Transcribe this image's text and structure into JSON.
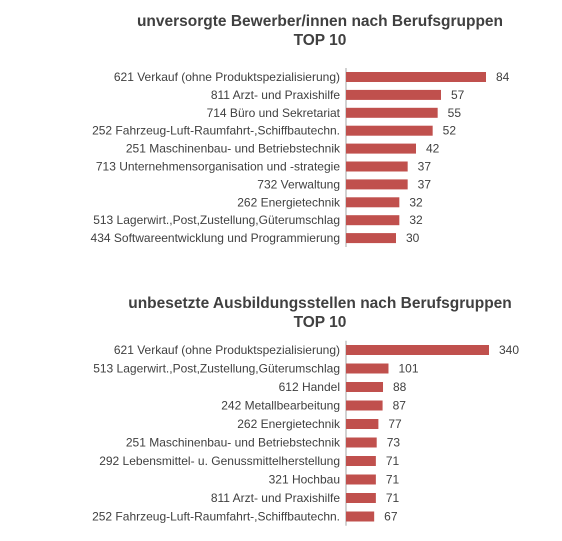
{
  "colors": {
    "bar": "#c0504d",
    "axis": "#a6a6a6",
    "text": "#404040"
  },
  "chart_data": [
    {
      "type": "bar",
      "orientation": "horizontal",
      "title": "unversorgte Bewerber/innen nach Berufsgruppen",
      "subtitle": "TOP 10",
      "categories": [
        "621 Verkauf (ohne Produktspezialisierung)",
        "811 Arzt- und Praxishilfe",
        "714 Büro und Sekretariat",
        "252 Fahrzeug-Luft-Raumfahrt-,Schiffbautechn.",
        "251 Maschinenbau- und Betriebstechnik",
        "713 Unternehmensorganisation und -strategie",
        "732 Verwaltung",
        "262 Energietechnik",
        "513 Lagerwirt.,Post,Zustellung,Güterumschlag",
        "434 Softwareentwicklung und Programmierung"
      ],
      "values": [
        84,
        57,
        55,
        52,
        42,
        37,
        37,
        32,
        32,
        30
      ],
      "xlim": [
        0,
        100
      ],
      "grid": false,
      "data_labels": true
    },
    {
      "type": "bar",
      "orientation": "horizontal",
      "title": "unbesetzte Ausbildungsstellen nach Berufsgruppen",
      "subtitle": "TOP 10",
      "categories": [
        "621 Verkauf (ohne Produktspezialisierung)",
        "513 Lagerwirt.,Post,Zustellung,Güterumschlag",
        "612 Handel",
        "242 Metallbearbeitung",
        "262 Energietechnik",
        "251 Maschinenbau- und Betriebstechnik",
        "292 Lebensmittel- u. Genussmittelherstellung",
        "321 Hochbau",
        "811 Arzt- und Praxishilfe",
        "252 Fahrzeug-Luft-Raumfahrt-,Schiffbautechn."
      ],
      "values": [
        340,
        101,
        88,
        87,
        77,
        73,
        71,
        71,
        71,
        67
      ],
      "xlim": [
        0,
        400
      ],
      "grid": false,
      "data_labels": true
    }
  ]
}
